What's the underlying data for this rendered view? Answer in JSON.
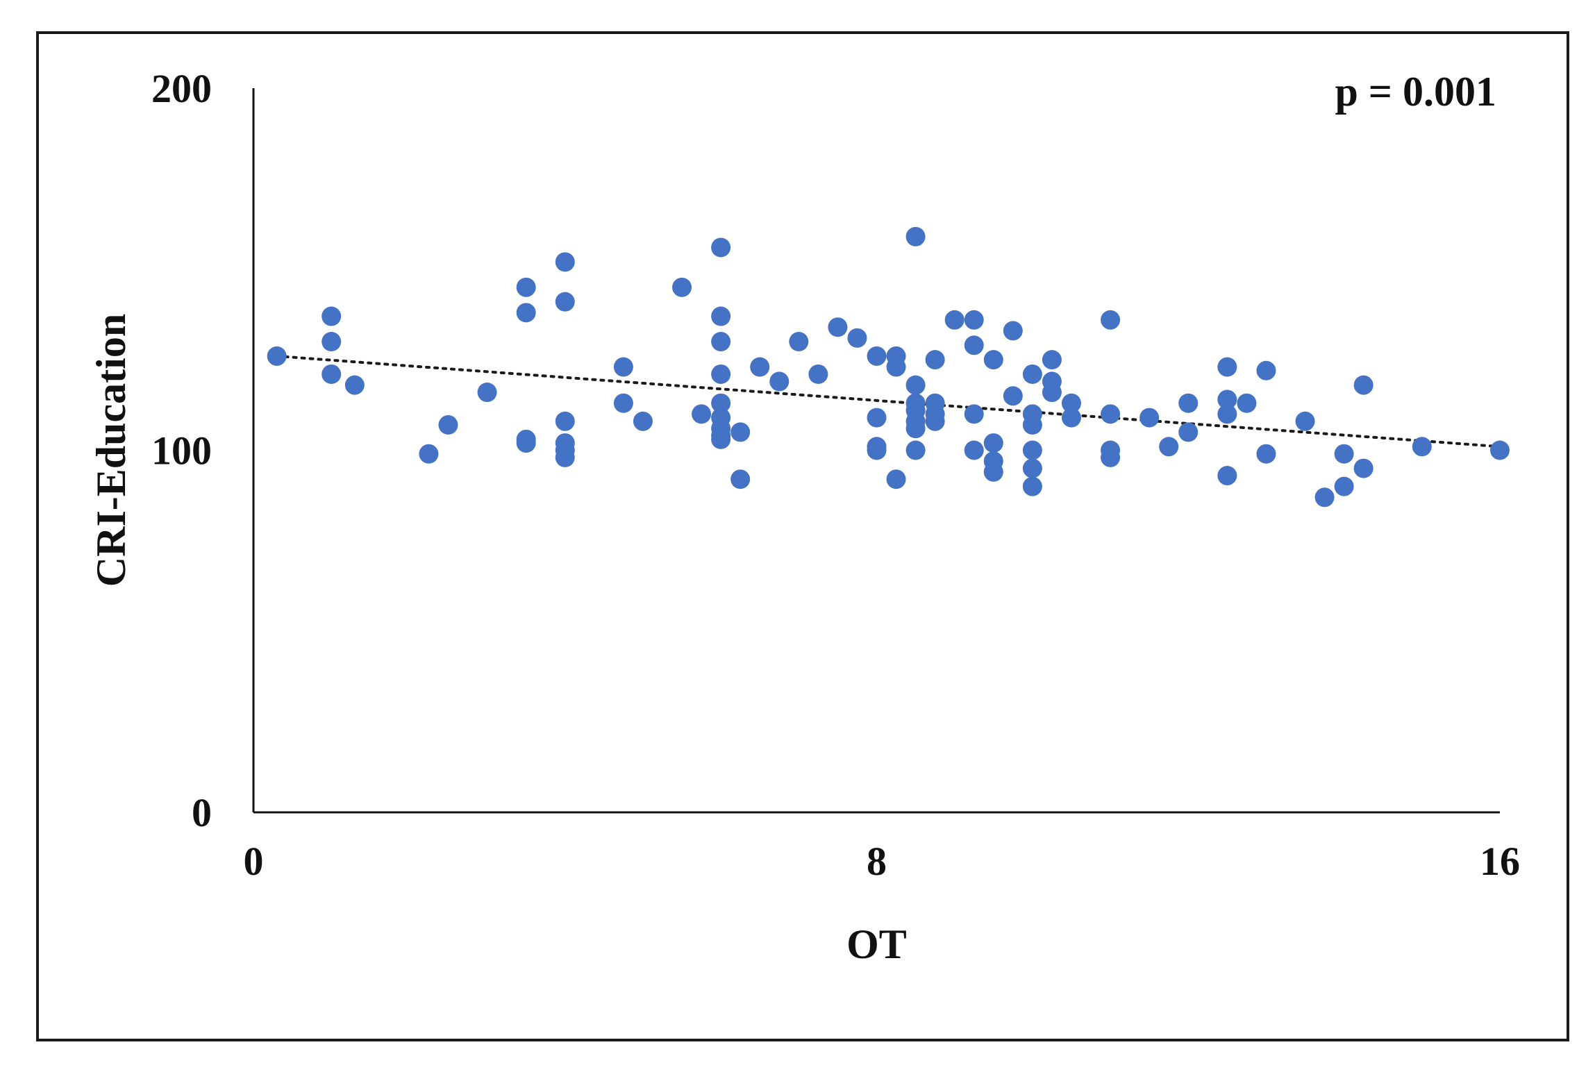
{
  "chart_data": {
    "type": "scatter",
    "title": "",
    "xlabel": "OT",
    "ylabel": "CRI-Education",
    "xlim": [
      0,
      16
    ],
    "ylim": [
      0,
      200
    ],
    "xticks": [
      0,
      8,
      16
    ],
    "yticks": [
      0,
      100,
      200
    ],
    "grid": false,
    "legend": "none",
    "annotation": "p = 0.001",
    "marker_color": "#4472C4",
    "trendline": {
      "style": "dotted",
      "color": "#1a1a1a",
      "x": [
        0.3,
        16
      ],
      "y": [
        126,
        101
      ]
    },
    "series": [
      {
        "points": [
          [
            0.3,
            126
          ],
          [
            1,
            137
          ],
          [
            1,
            130
          ],
          [
            1,
            121
          ],
          [
            1.3,
            118
          ],
          [
            2.25,
            99
          ],
          [
            2.5,
            107
          ],
          [
            3,
            116
          ],
          [
            3.5,
            145
          ],
          [
            3.5,
            138
          ],
          [
            3.5,
            103
          ],
          [
            3.5,
            102
          ],
          [
            4,
            152
          ],
          [
            4,
            141
          ],
          [
            4,
            108
          ],
          [
            4,
            102
          ],
          [
            4,
            98
          ],
          [
            4,
            100
          ],
          [
            4.75,
            123
          ],
          [
            4.75,
            113
          ],
          [
            5,
            108
          ],
          [
            5.5,
            145
          ],
          [
            5.75,
            110
          ],
          [
            6,
            156
          ],
          [
            6,
            137
          ],
          [
            6,
            130
          ],
          [
            6,
            121
          ],
          [
            6,
            113
          ],
          [
            6,
            109
          ],
          [
            6,
            106
          ],
          [
            6,
            104
          ],
          [
            6,
            103
          ],
          [
            6.25,
            92
          ],
          [
            6.25,
            105
          ],
          [
            6.5,
            123
          ],
          [
            6.75,
            119
          ],
          [
            7,
            130
          ],
          [
            7.25,
            121
          ],
          [
            7.5,
            134
          ],
          [
            7.75,
            131
          ],
          [
            8,
            126
          ],
          [
            8,
            109
          ],
          [
            8,
            101
          ],
          [
            8,
            100
          ],
          [
            8.25,
            126
          ],
          [
            8.25,
            123
          ],
          [
            8.25,
            92
          ],
          [
            8.5,
            159
          ],
          [
            8.5,
            118
          ],
          [
            8.5,
            113
          ],
          [
            8.5,
            108
          ],
          [
            8.5,
            111
          ],
          [
            8.5,
            106
          ],
          [
            8.5,
            100
          ],
          [
            8.75,
            125
          ],
          [
            8.75,
            113
          ],
          [
            8.75,
            108
          ],
          [
            8.75,
            110
          ],
          [
            9,
            136
          ],
          [
            9.25,
            136
          ],
          [
            9.25,
            129
          ],
          [
            9.25,
            110
          ],
          [
            9.25,
            100
          ],
          [
            9.5,
            125
          ],
          [
            9.5,
            102
          ],
          [
            9.5,
            97
          ],
          [
            9.5,
            94
          ],
          [
            9.75,
            133
          ],
          [
            9.75,
            115
          ],
          [
            10,
            121
          ],
          [
            10,
            110
          ],
          [
            10,
            107
          ],
          [
            10,
            100
          ],
          [
            10,
            95
          ],
          [
            10,
            90
          ],
          [
            10.25,
            125
          ],
          [
            10.25,
            119
          ],
          [
            10.25,
            116
          ],
          [
            10.5,
            113
          ],
          [
            10.5,
            109
          ],
          [
            11,
            136
          ],
          [
            11,
            110
          ],
          [
            11,
            100
          ],
          [
            11,
            98
          ],
          [
            11.5,
            109
          ],
          [
            11.75,
            101
          ],
          [
            12,
            113
          ],
          [
            12,
            105
          ],
          [
            12.5,
            123
          ],
          [
            12.5,
            114
          ],
          [
            12.5,
            110
          ],
          [
            12.5,
            93
          ],
          [
            12.75,
            113
          ],
          [
            13,
            122
          ],
          [
            13,
            99
          ],
          [
            13.5,
            108
          ],
          [
            13.75,
            87
          ],
          [
            14,
            99
          ],
          [
            14,
            90
          ],
          [
            14.25,
            118
          ],
          [
            14.25,
            95
          ],
          [
            15,
            101
          ],
          [
            16,
            100
          ]
        ]
      }
    ]
  }
}
